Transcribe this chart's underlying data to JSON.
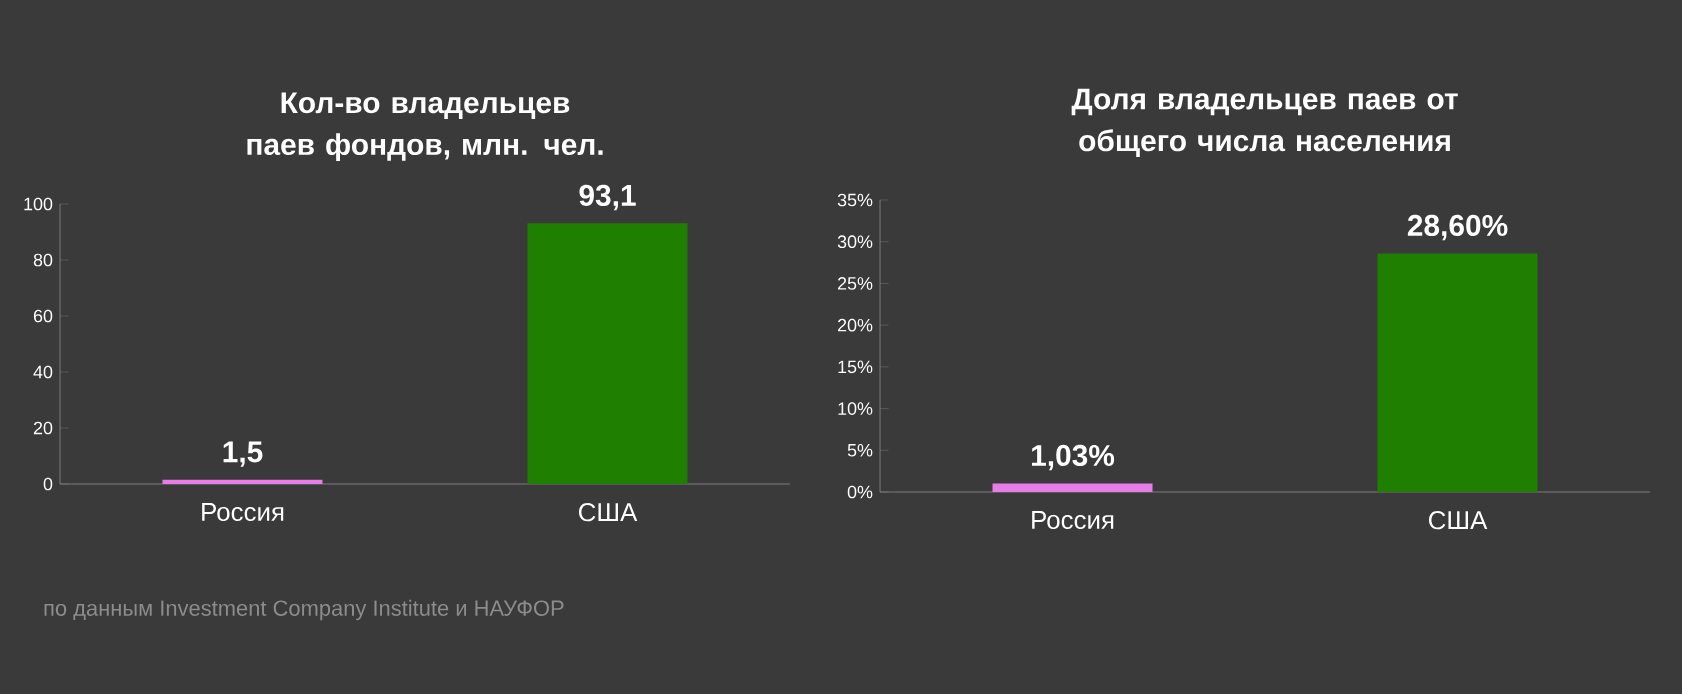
{
  "chart_data": [
    {
      "type": "bar",
      "title": "Кол-во владельцев паев фондов, млн. чел.",
      "categories": [
        "Россия",
        "США"
      ],
      "values": [
        1.5,
        93.1
      ],
      "value_labels": [
        "1,5",
        "93,1"
      ],
      "colors": [
        "#e87de8",
        "#1f7f00"
      ],
      "ylim": [
        0,
        100
      ],
      "yticks": [
        0,
        20,
        40,
        60,
        80,
        100
      ],
      "annotations": [
        "по данным  Investment Company Institute  и НАУФОР"
      ]
    },
    {
      "type": "bar",
      "title": "Доля владельцев паев от общего числа населения",
      "categories": [
        "Россия",
        "США"
      ],
      "values": [
        1.03,
        28.6
      ],
      "value_labels": [
        "1,03%",
        "28,60%"
      ],
      "colors": [
        "#e87de8",
        "#1f7f00"
      ],
      "ylim": [
        0,
        35
      ],
      "yticks": [
        {
          "value": 0,
          "label": "0%"
        },
        {
          "value": 5,
          "label": "5%"
        },
        {
          "value": 10,
          "label": "10%"
        },
        {
          "value": 15,
          "label": "15%"
        },
        {
          "value": 20,
          "label": "20%"
        },
        {
          "value": 25,
          "label": "25%"
        },
        {
          "value": 30,
          "label": "30%"
        },
        {
          "value": 35,
          "label": "35%"
        }
      ]
    }
  ]
}
